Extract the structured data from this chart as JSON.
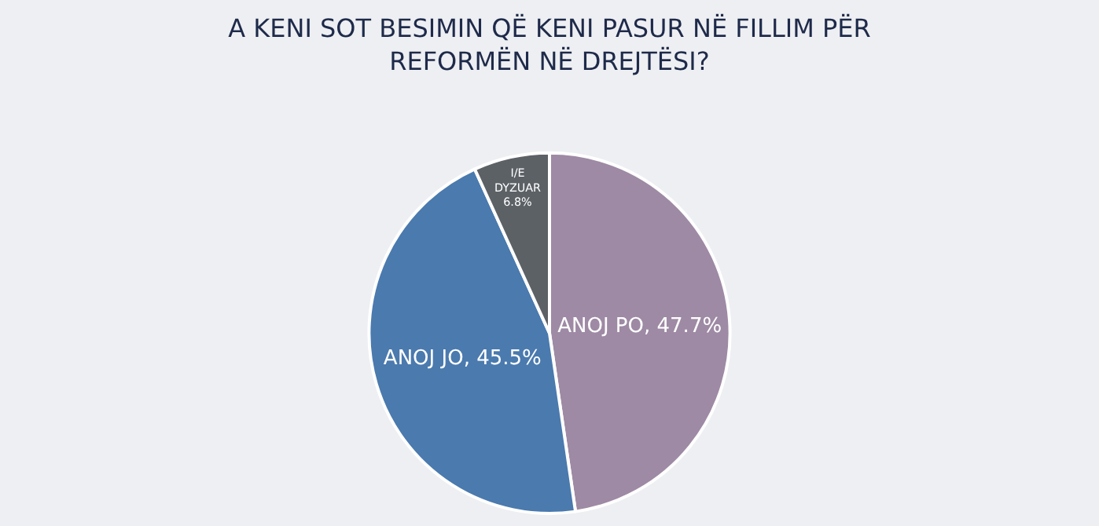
{
  "chart_data": {
    "type": "pie",
    "title": "A KENI SOT BESIMIN QË KENI PASUR NË FILLIM PËR\nREFORMËN NË DREJTËSI?",
    "categories": [
      "ANOJ PO",
      "ANOJ JO",
      "I/E\nDYZUAR"
    ],
    "values": [
      47.7,
      45.5,
      6.8
    ],
    "value_labels": [
      "47.7%",
      "45.5%",
      "6.8%"
    ],
    "colors": [
      "#9e8aa4",
      "#4a7aae",
      "#5c6166"
    ],
    "legend": false
  }
}
